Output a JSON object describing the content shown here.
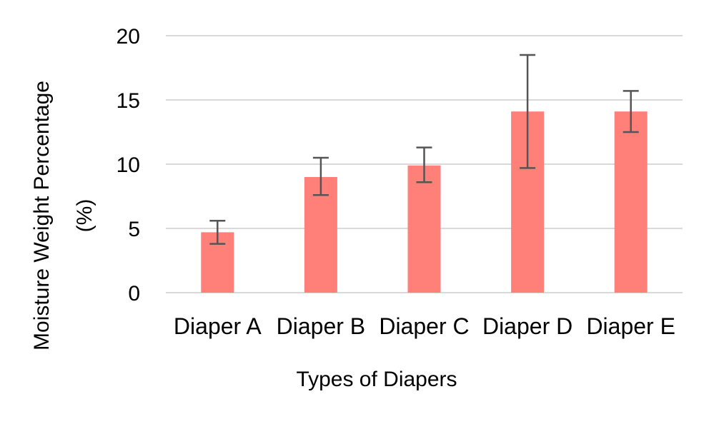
{
  "chart_data": {
    "type": "bar",
    "categories": [
      "Diaper A",
      "Diaper B",
      "Diaper C",
      "Diaper D",
      "Diaper E"
    ],
    "values": [
      4.7,
      9.0,
      9.9,
      14.1,
      14.1
    ],
    "error_bars": [
      {
        "low": 3.8,
        "high": 5.6
      },
      {
        "low": 7.6,
        "high": 10.5
      },
      {
        "low": 8.6,
        "high": 11.3
      },
      {
        "low": 9.7,
        "high": 18.5
      },
      {
        "low": 12.5,
        "high": 15.7
      }
    ],
    "xlabel": "Types of Diapers",
    "ylabel_lines": [
      "Moisture Weight Percentage",
      "(%)"
    ],
    "ylim": [
      0,
      20
    ],
    "yticks": [
      0,
      5,
      10,
      15,
      20
    ],
    "ytick_labels": [
      "0",
      "5",
      "10",
      "15",
      "20"
    ],
    "grid": true,
    "legend": "none",
    "bar_color": "#ff7f79",
    "error_bar_color": "#555555",
    "gridline_color": "#d9d9d9"
  }
}
